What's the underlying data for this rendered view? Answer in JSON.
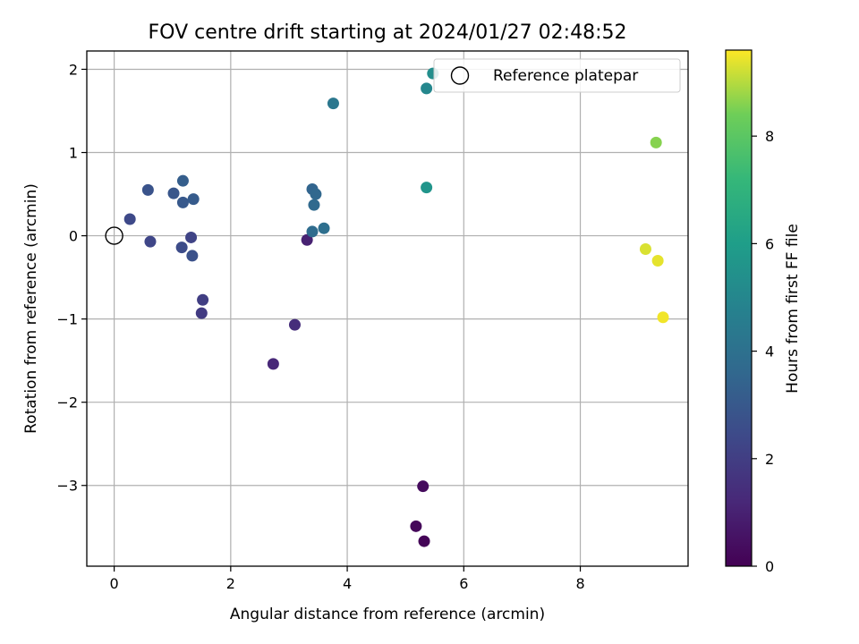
{
  "chart_data": {
    "type": "scatter",
    "title": "FOV centre drift starting at 2024/01/27 02:48:52",
    "xlabel": "Angular distance from reference (arcmin)",
    "ylabel": "Rotation from reference (arcmin)",
    "xlim": [
      -0.47,
      9.85
    ],
    "ylim": [
      -3.97,
      2.22
    ],
    "xticks": [
      0,
      2,
      4,
      6,
      8
    ],
    "yticks": [
      -3,
      -2,
      -1,
      0,
      1,
      2
    ],
    "xtick_labels": [
      "0",
      "2",
      "4",
      "6",
      "8"
    ],
    "ytick_labels": [
      "−3",
      "−2",
      "−1",
      "0",
      "1",
      "2"
    ],
    "grid": true,
    "legend": {
      "placement": "top-right",
      "entries": [
        "Reference platepar"
      ]
    },
    "colorbar": {
      "label": "Hours from first FF file",
      "colormap": "viridis",
      "range": [
        0,
        9.6
      ],
      "ticks": [
        0,
        2,
        4,
        6,
        8
      ],
      "tick_labels": [
        "0",
        "2",
        "4",
        "6",
        "8"
      ]
    },
    "reference_point": {
      "x": 0,
      "y": 0
    },
    "points": [
      {
        "x": 5.32,
        "y": -3.67,
        "hours": 0.1
      },
      {
        "x": 5.18,
        "y": -3.49,
        "hours": 0.2
      },
      {
        "x": 5.3,
        "y": -3.01,
        "hours": 0.3
      },
      {
        "x": 3.31,
        "y": -0.05,
        "hours": 1.0
      },
      {
        "x": 2.73,
        "y": -1.54,
        "hours": 1.2
      },
      {
        "x": 3.1,
        "y": -1.07,
        "hours": 1.4
      },
      {
        "x": 1.5,
        "y": -0.93,
        "hours": 1.9
      },
      {
        "x": 1.52,
        "y": -0.77,
        "hours": 2.0
      },
      {
        "x": 1.32,
        "y": -0.02,
        "hours": 2.2
      },
      {
        "x": 0.62,
        "y": -0.07,
        "hours": 2.3
      },
      {
        "x": 0.27,
        "y": 0.2,
        "hours": 2.4
      },
      {
        "x": 1.16,
        "y": -0.14,
        "hours": 2.5
      },
      {
        "x": 1.34,
        "y": -0.24,
        "hours": 2.7
      },
      {
        "x": 0.58,
        "y": 0.55,
        "hours": 2.8
      },
      {
        "x": 1.02,
        "y": 0.51,
        "hours": 2.9
      },
      {
        "x": 1.18,
        "y": 0.4,
        "hours": 3.0
      },
      {
        "x": 1.36,
        "y": 0.44,
        "hours": 3.1
      },
      {
        "x": 1.18,
        "y": 0.66,
        "hours": 3.2
      },
      {
        "x": 3.4,
        "y": 0.56,
        "hours": 3.5
      },
      {
        "x": 3.46,
        "y": 0.5,
        "hours": 3.6
      },
      {
        "x": 3.43,
        "y": 0.37,
        "hours": 3.7
      },
      {
        "x": 3.4,
        "y": 0.05,
        "hours": 3.8
      },
      {
        "x": 3.6,
        "y": 0.09,
        "hours": 3.9
      },
      {
        "x": 3.76,
        "y": 1.59,
        "hours": 4.3
      },
      {
        "x": 5.36,
        "y": 1.77,
        "hours": 5.0
      },
      {
        "x": 5.47,
        "y": 1.95,
        "hours": 5.3
      },
      {
        "x": 5.36,
        "y": 0.58,
        "hours": 5.6
      },
      {
        "x": 9.3,
        "y": 1.12,
        "hours": 8.6
      },
      {
        "x": 9.12,
        "y": -0.16,
        "hours": 9.3
      },
      {
        "x": 9.33,
        "y": -0.3,
        "hours": 9.4
      },
      {
        "x": 9.42,
        "y": -0.98,
        "hours": 9.5
      }
    ]
  }
}
